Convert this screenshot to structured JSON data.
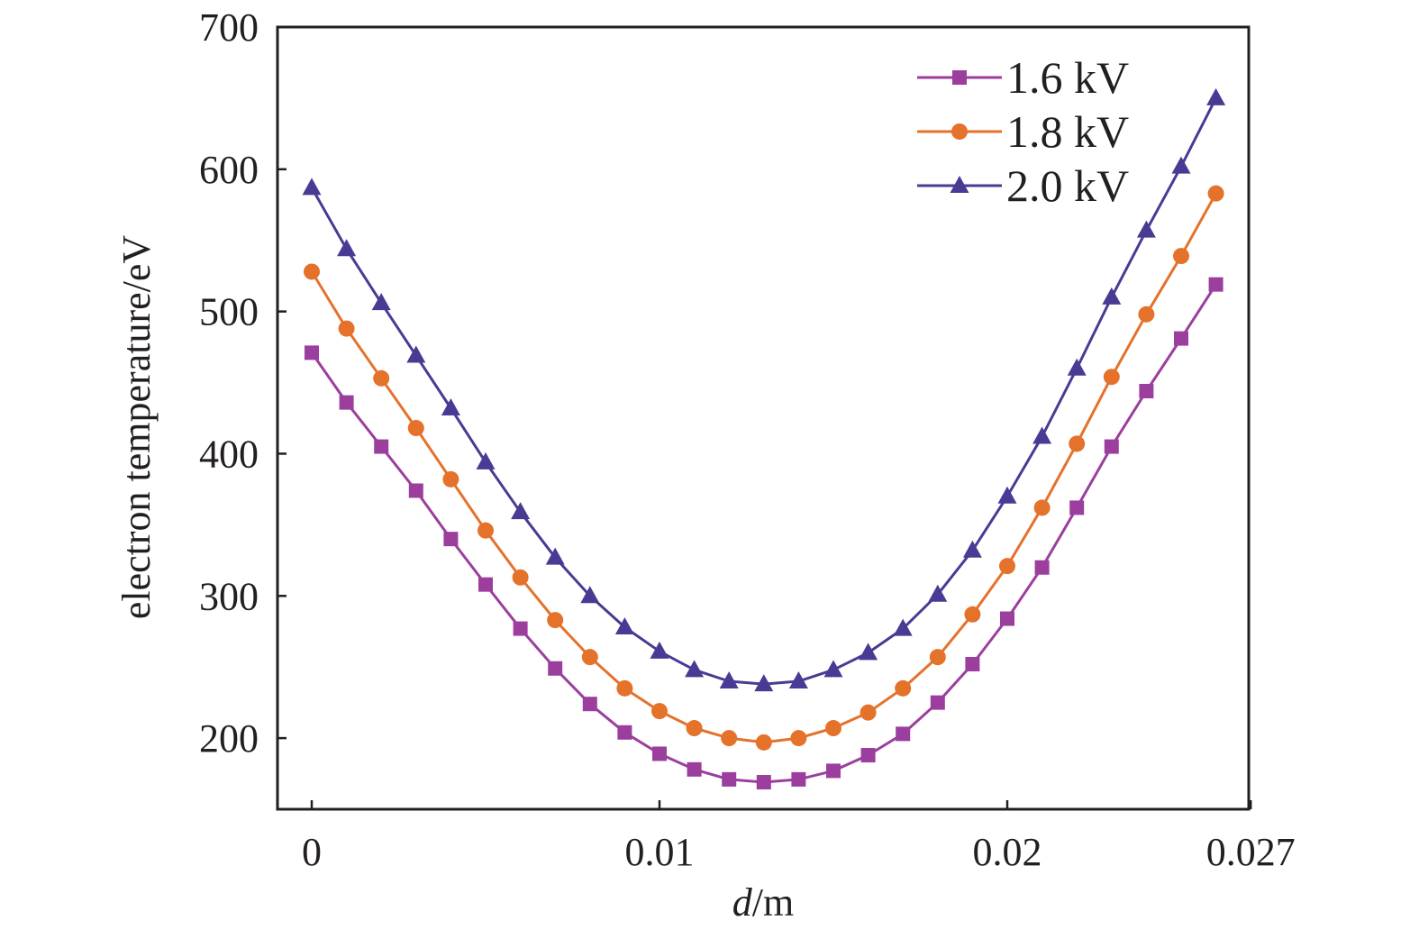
{
  "chart_data": {
    "type": "line",
    "title": "",
    "xlabel_italic": "d",
    "xlabel_rest": "/m",
    "ylabel": "electron temperature/eV",
    "xlim": [
      -0.001,
      0.027
    ],
    "ylim": [
      150,
      700
    ],
    "x_ticks": [
      0,
      0.01,
      0.02,
      0.027
    ],
    "x_tick_labels": [
      "0",
      "0.01",
      "0.02",
      "0.027"
    ],
    "y_ticks": [
      200,
      300,
      400,
      500,
      600,
      700
    ],
    "y_tick_labels": [
      "200",
      "300",
      "400",
      "500",
      "600",
      "700"
    ],
    "grid": false,
    "legend_position": "top-right",
    "x": [
      0,
      0.001,
      0.002,
      0.003,
      0.004,
      0.005,
      0.006,
      0.007,
      0.008,
      0.009,
      0.01,
      0.011,
      0.012,
      0.013,
      0.014,
      0.015,
      0.016,
      0.017,
      0.018,
      0.019,
      0.02,
      0.021,
      0.022,
      0.023,
      0.024,
      0.025,
      0.026
    ],
    "series": [
      {
        "name": "1.6 kV",
        "color": "#9b3e9e",
        "marker": "square",
        "values": [
          471,
          436,
          405,
          374,
          340,
          308,
          277,
          249,
          224,
          204,
          189,
          178,
          171,
          169,
          171,
          177,
          188,
          203,
          225,
          252,
          284,
          320,
          362,
          405,
          444,
          481,
          519
        ]
      },
      {
        "name": "1.8 kV",
        "color": "#e5722b",
        "marker": "circle",
        "values": [
          528,
          488,
          453,
          418,
          382,
          346,
          313,
          283,
          257,
          235,
          219,
          207,
          200,
          197,
          200,
          207,
          218,
          235,
          257,
          287,
          321,
          362,
          407,
          454,
          498,
          539,
          583
        ]
      },
      {
        "name": "2.0 kV",
        "color": "#4b3a94",
        "marker": "triangle",
        "values": [
          587,
          544,
          506,
          469,
          432,
          394,
          359,
          327,
          300,
          278,
          261,
          248,
          240,
          238,
          240,
          248,
          260,
          277,
          301,
          332,
          370,
          412,
          460,
          510,
          557,
          602,
          650
        ]
      }
    ]
  }
}
